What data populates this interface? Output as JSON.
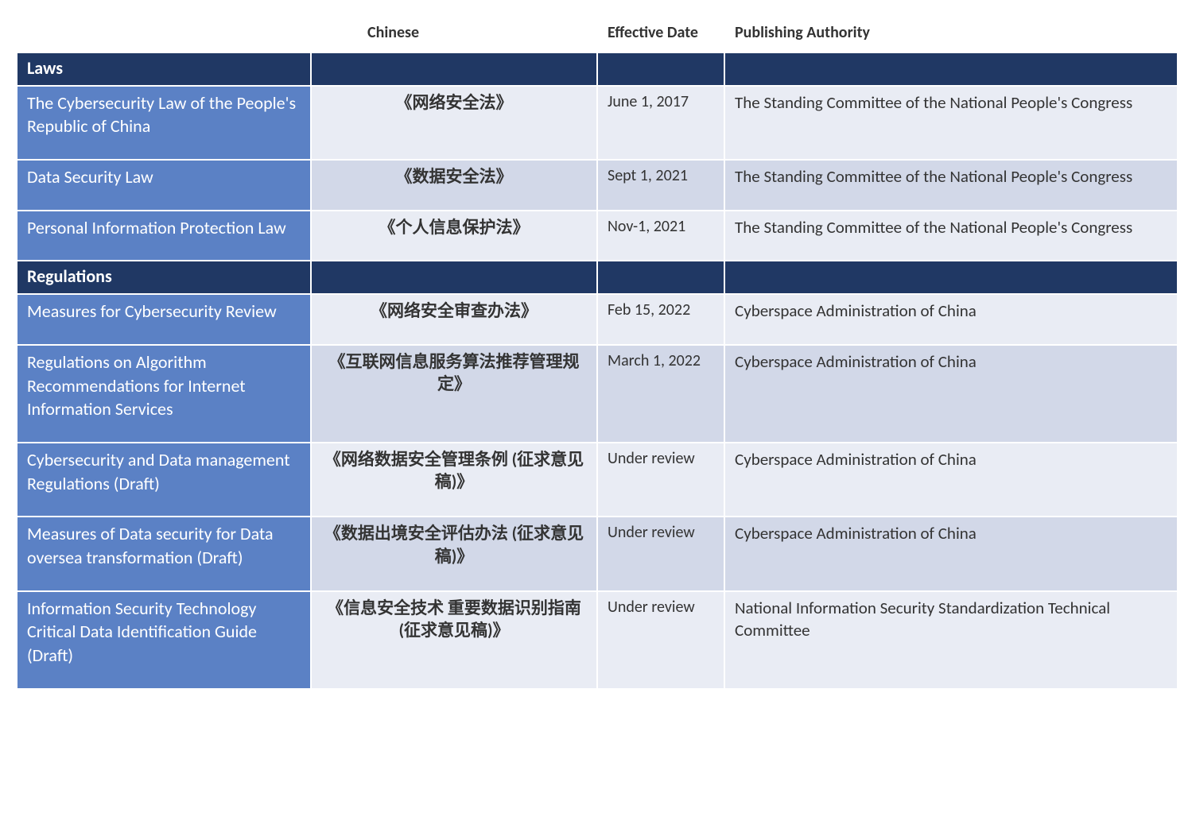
{
  "colors": {
    "section_bg": "#203864",
    "name_bg": "#5b81c5",
    "cell_bg_even": "#d2d8e8",
    "cell_bg_odd": "#e9ecf4",
    "header_text": "#333333",
    "white": "#ffffff"
  },
  "columns": {
    "c1": "",
    "c2": "Chinese",
    "c3": "Effective Date",
    "c4": "Publishing Authority"
  },
  "sections": [
    {
      "title": "Laws",
      "rows": [
        {
          "name": "The Cybersecurity Law of the People's Republic of China",
          "cn": "《网络安全法》",
          "date": "June 1, 2017",
          "auth": "The Standing Committee of the National People's Congress",
          "shade": "odd"
        },
        {
          "name": "Data Security Law",
          "cn": "《数据安全法》",
          "date": "Sept 1, 2021",
          "auth": "The Standing Committee of the National People's Congress",
          "shade": "even"
        },
        {
          "name": "Personal Information Protection Law",
          "cn": "《个人信息保护法》",
          "date": "Nov-1, 2021",
          "auth": "The Standing Committee of the National People's Congress",
          "shade": "odd"
        }
      ]
    },
    {
      "title": "Regulations",
      "rows": [
        {
          "name": "Measures for Cybersecurity Review",
          "cn": "《网络安全审查办法》",
          "date": "Feb 15, 2022",
          "auth": "Cyberspace Administration of China",
          "shade": "odd"
        },
        {
          "name": "Regulations on Algorithm Recommendations for Internet Information Services",
          "cn": "《互联网信息服务算法推荐管理规定》",
          "date": "March 1, 2022",
          "auth": "Cyberspace Administration of China",
          "shade": "even"
        },
        {
          "name": "Cybersecurity and Data management Regulations (Draft)",
          "cn": "《网络数据安全管理条例 (征求意见稿)》",
          "date": "Under review",
          "auth": "Cyberspace Administration of China",
          "shade": "odd"
        },
        {
          "name": "Measures of Data security for Data oversea transformation (Draft)",
          "cn": "《数据出境安全评估办法 (征求意见稿)》",
          "date": "Under review",
          "auth": "Cyberspace Administration of China",
          "shade": "even"
        },
        {
          "name": "Information Security Technology Critical Data Identification Guide (Draft)",
          "cn": "《信息安全技术 重要数据识别指南 (征求意见稿)》",
          "date": "Under review",
          "auth": "National Information Security Standardization Technical Committee",
          "shade": "odd"
        }
      ]
    }
  ]
}
